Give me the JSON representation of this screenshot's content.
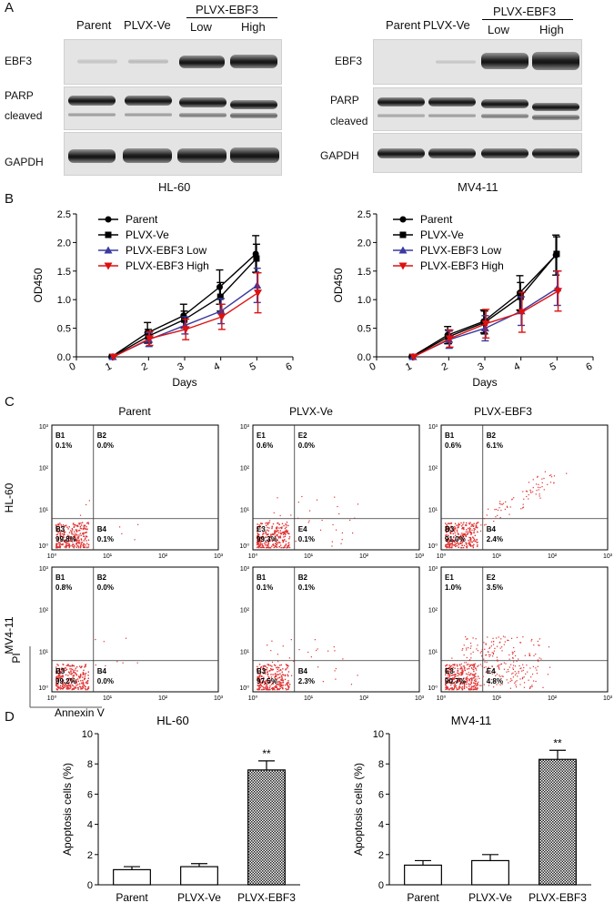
{
  "panel_labels": {
    "a": "A",
    "b": "B",
    "c": "C",
    "d": "D"
  },
  "panel_a": {
    "blots": [
      {
        "cell_line": "HL-60",
        "lanes": [
          "Parent",
          "PLVX-Ve",
          "Low",
          "High"
        ],
        "group_label": "PLVX-EBF3",
        "rows": [
          "EBF3",
          "PARP",
          "cleaved",
          "GAPDH"
        ]
      },
      {
        "cell_line": "MV4-11",
        "lanes": [
          "Parent",
          "PLVX-Ve",
          "Low",
          "High"
        ],
        "group_label": "PLVX-EBF3",
        "rows": [
          "EBF3",
          "PARP",
          "cleaved",
          "GAPDH"
        ]
      }
    ]
  },
  "flow": {
    "col_titles": [
      "Parent",
      "PLVX-Ve",
      "PLVX-EBF3"
    ],
    "row_labels": [
      "HL-60",
      "MV4-11"
    ],
    "x_axis": "Annexin  V",
    "y_axis": "PI",
    "tick_labels": [
      "10⁰",
      "10¹",
      "10²",
      "10³"
    ],
    "plots": [
      [
        {
          "q": [
            "B1",
            "B2",
            "B3",
            "B4"
          ],
          "v": [
            "0.1%",
            "0.0%",
            "99.8%",
            "0.1%"
          ]
        },
        {
          "q": [
            "E1",
            "E2",
            "E3",
            "E4"
          ],
          "v": [
            "0.6%",
            "0.0%",
            "99.3%",
            "0.1%"
          ]
        },
        {
          "q": [
            "B1",
            "B2",
            "B3",
            "B4"
          ],
          "v": [
            "0.6%",
            "6.1%",
            "91.0%",
            "2.4%"
          ]
        }
      ],
      [
        {
          "q": [
            "B1",
            "B2",
            "B3",
            "B4"
          ],
          "v": [
            "0.8%",
            "0.0%",
            "99.2%",
            "0.0%"
          ]
        },
        {
          "q": [
            "B1",
            "B2",
            "B3",
            "B4"
          ],
          "v": [
            "0.1%",
            "0.1%",
            "97.5%",
            "2.3%"
          ]
        },
        {
          "q": [
            "E1",
            "E2",
            "E3",
            "E4"
          ],
          "v": [
            "1.0%",
            "3.5%",
            "90.7%",
            "4.8%"
          ]
        }
      ]
    ]
  },
  "chart_data": [
    {
      "type": "line",
      "panel": "B-left",
      "x": [
        1,
        2,
        3,
        4,
        5
      ],
      "xlabel": "Days",
      "ylabel": "OD450",
      "xlim": [
        0,
        6
      ],
      "ylim": [
        0,
        2.5
      ],
      "xticks": [
        "0",
        "1",
        "2",
        "3",
        "4",
        "5",
        "6"
      ],
      "yticks": [
        "0.0",
        "0.5",
        "1.0",
        "1.5",
        "2.0",
        "2.5"
      ],
      "series": [
        {
          "name": "Parent",
          "color": "#000000",
          "marker": "circle",
          "values": [
            0,
            0.42,
            0.72,
            1.22,
            1.8
          ],
          "err": [
            0,
            0.18,
            0.2,
            0.3,
            0.32
          ]
        },
        {
          "name": "PLVX-Ve",
          "color": "#000000",
          "marker": "square",
          "values": [
            0,
            0.36,
            0.65,
            1.05,
            1.72
          ],
          "err": [
            0,
            0.12,
            0.15,
            0.25,
            0.25
          ]
        },
        {
          "name": "PLVX-EBF3 Low",
          "color": "#3a3aa0",
          "marker": "triangle-up",
          "values": [
            0,
            0.3,
            0.55,
            0.8,
            1.25
          ],
          "err": [
            0,
            0.12,
            0.15,
            0.22,
            0.3
          ]
        },
        {
          "name": "PLVX-EBF3 High",
          "color": "#dd1111",
          "marker": "triangle-down",
          "values": [
            0,
            0.32,
            0.48,
            0.7,
            1.12
          ],
          "err": [
            0,
            0.12,
            0.18,
            0.22,
            0.35
          ]
        }
      ]
    },
    {
      "type": "line",
      "panel": "B-right",
      "x": [
        1,
        2,
        3,
        4,
        5
      ],
      "xlabel": "Days",
      "ylabel": "OD450",
      "xlim": [
        0,
        6
      ],
      "ylim": [
        0,
        2.5
      ],
      "xticks": [
        "0",
        "1",
        "2",
        "3",
        "4",
        "5",
        "6"
      ],
      "yticks": [
        "0.0",
        "0.5",
        "1.0",
        "1.5",
        "2.0",
        "2.5"
      ],
      "series": [
        {
          "name": "Parent",
          "color": "#000000",
          "marker": "circle",
          "values": [
            0,
            0.38,
            0.62,
            1.12,
            1.78
          ],
          "err": [
            0,
            0.15,
            0.2,
            0.3,
            0.35
          ]
        },
        {
          "name": "PLVX-Ve",
          "color": "#000000",
          "marker": "square",
          "values": [
            0,
            0.35,
            0.6,
            1.05,
            1.8
          ],
          "err": [
            0,
            0.12,
            0.2,
            0.25,
            0.3
          ]
        },
        {
          "name": "PLVX-EBF3 Low",
          "color": "#3a3aa0",
          "marker": "triangle-up",
          "values": [
            0,
            0.3,
            0.5,
            0.8,
            1.2
          ],
          "err": [
            0,
            0.15,
            0.22,
            0.25,
            0.3
          ]
        },
        {
          "name": "PLVX-EBF3 High",
          "color": "#dd1111",
          "marker": "triangle-down",
          "values": [
            0,
            0.32,
            0.58,
            0.78,
            1.15
          ],
          "err": [
            0,
            0.15,
            0.25,
            0.35,
            0.35
          ]
        }
      ]
    },
    {
      "type": "bar",
      "panel": "D-left",
      "title": "HL-60",
      "categories": [
        "Parent",
        "PLVX-Ve",
        "PLVX-EBF3"
      ],
      "values": [
        1.0,
        1.2,
        7.6
      ],
      "err": [
        0.2,
        0.2,
        0.6
      ],
      "ylabel": "Apoptosis cells (%)",
      "ylim": [
        0,
        10
      ],
      "yticks": [
        "0",
        "2",
        "4",
        "6",
        "8",
        "10"
      ],
      "annotations": [
        "",
        "",
        "**"
      ]
    },
    {
      "type": "bar",
      "panel": "D-right",
      "title": "MV4-11",
      "categories": [
        "Parent",
        "PLVX-Ve",
        "PLVX-EBF3"
      ],
      "values": [
        1.3,
        1.6,
        8.3
      ],
      "err": [
        0.3,
        0.4,
        0.6
      ],
      "ylabel": "Apoptosis cells (%)",
      "ylim": [
        0,
        10
      ],
      "yticks": [
        "0",
        "2",
        "4",
        "6",
        "8",
        "10"
      ],
      "annotations": [
        "",
        "",
        "**"
      ]
    }
  ]
}
